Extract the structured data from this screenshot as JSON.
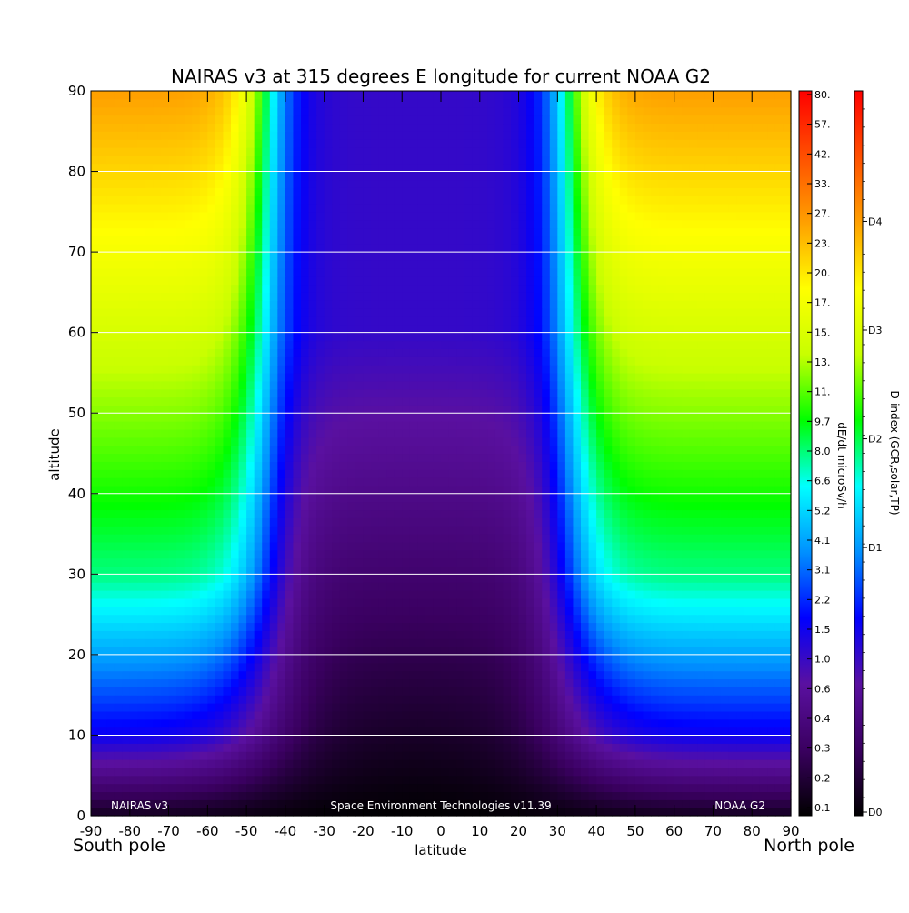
{
  "chart_data": {
    "type": "heatmap",
    "title": "NAIRAS v3 at 315 degrees E longitude for current NOAA G2",
    "xlabel": "latitude",
    "ylabel": "altitude",
    "xlim": [
      -90,
      90
    ],
    "ylim": [
      0,
      90
    ],
    "x_ticks": [
      "-90",
      "-80",
      "-70",
      "-60",
      "-50",
      "-40",
      "-30",
      "-20",
      "-10",
      "0",
      "10",
      "20",
      "30",
      "40",
      "50",
      "60",
      "70",
      "80",
      "90"
    ],
    "y_ticks": [
      "0",
      "10",
      "20",
      "30",
      "40",
      "50",
      "60",
      "70",
      "80",
      "90"
    ],
    "grid": "horizontal lines at each altitude tick from 10 to 80",
    "corner_labels": {
      "left": "South pole",
      "right": "North pole"
    },
    "annotations": {
      "bottom_left": "NAIRAS v3",
      "bottom_center": "Space Environment Technologies v11.39",
      "bottom_right": "NOAA G2"
    },
    "dose_colorbar": {
      "label": "dE/dt microSv/h",
      "tick_labels": [
        "80.",
        "57.",
        "42.",
        "33.",
        "27.",
        "23.",
        "20.",
        "17.",
        "15.",
        "13.",
        "11.",
        "9.7",
        "8.0",
        "6.6",
        "5.2",
        "4.1",
        "3.1",
        "2.2",
        "1.5",
        "1.0",
        "0.6",
        "0.4",
        "0.3",
        "0.2",
        "0.1"
      ]
    },
    "dindex_colorbar": {
      "label": "D-index (GCR,solar,TP)",
      "tick_labels": [
        "D4",
        "D3",
        "D2",
        "D1",
        "D0"
      ],
      "tick_fractions": [
        0.82,
        0.67,
        0.52,
        0.37,
        0.0
      ]
    },
    "colormap": [
      "#000000",
      "#3a0060",
      "#5a10a0",
      "#0000ff",
      "#0090ff",
      "#00ffff",
      "#00ff00",
      "#c8ff00",
      "#ffff00",
      "#ffa000",
      "#ff5000",
      "#ff0000"
    ],
    "field_model": {
      "unit_scale": "fraction of colorbar height (0 = bottom, 1 = top)",
      "plateau_levels": [
        0.03,
        0.26,
        0.5,
        0.82
      ],
      "plateau_altitudes": [
        0,
        10,
        30,
        90
      ],
      "equator_level_low": 0.0,
      "equator_level_high": 0.22,
      "north_transition_latitude_high": 33,
      "north_transition_latitude_low": 35,
      "south_transition_latitude_high": -45,
      "south_transition_latitude_low": -48
    }
  }
}
